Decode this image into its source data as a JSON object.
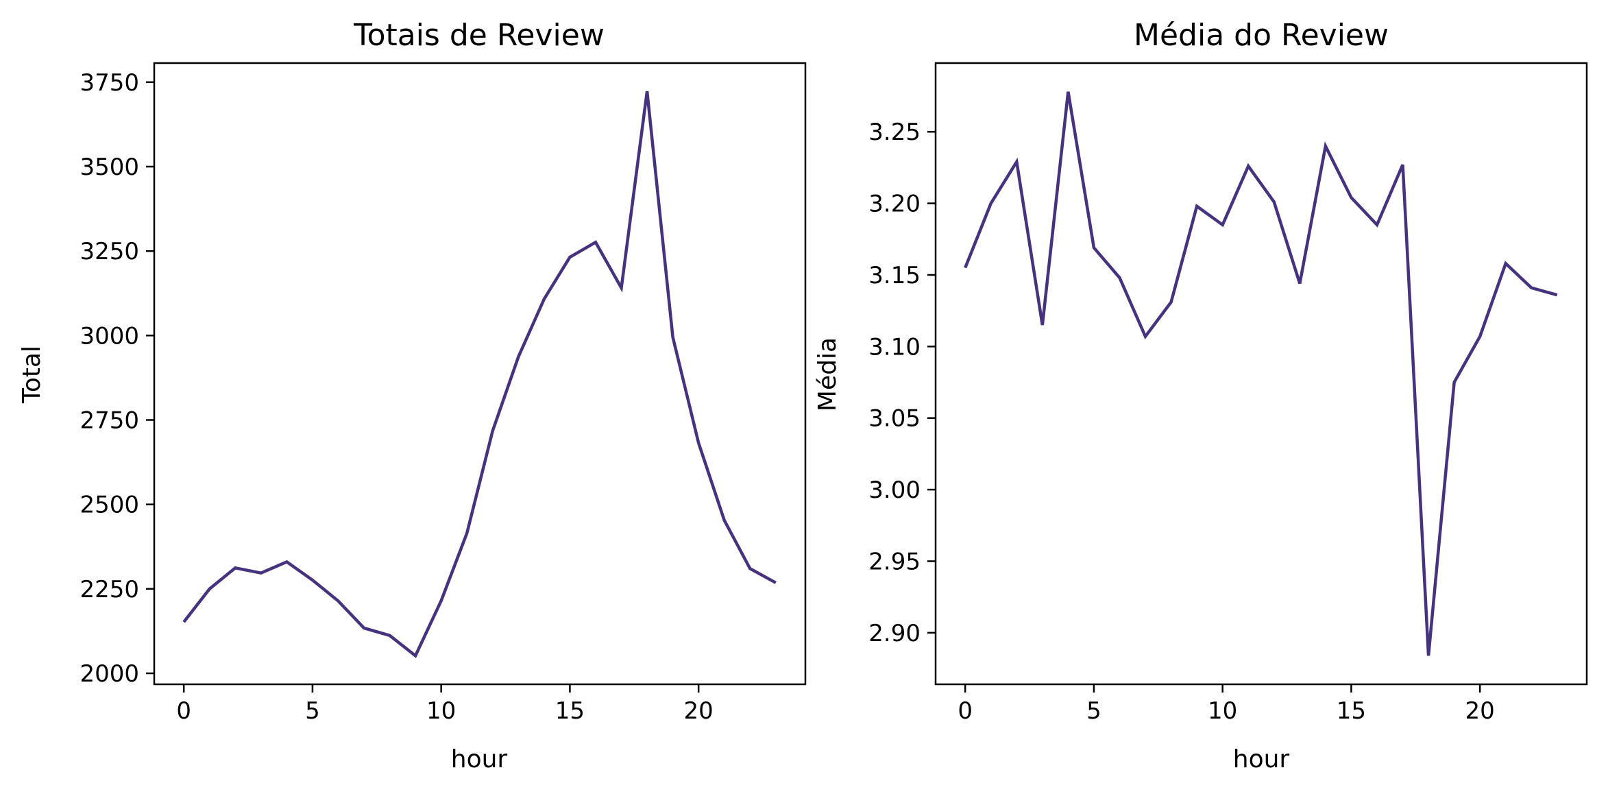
{
  "colors": {
    "line": "#46327e",
    "axes": "#000000",
    "background": "#ffffff"
  },
  "chart_data": [
    {
      "type": "line",
      "title": "Totais de Review",
      "xlabel": "hour",
      "ylabel": "Total",
      "x": [
        0,
        1,
        2,
        3,
        4,
        5,
        6,
        7,
        8,
        9,
        10,
        11,
        12,
        13,
        14,
        15,
        16,
        17,
        18,
        19,
        20,
        21,
        22,
        23
      ],
      "series": [
        {
          "values": [
            2152,
            2250,
            2312,
            2297,
            2330,
            2276,
            2214,
            2134,
            2112,
            2052,
            2215,
            2415,
            2718,
            2937,
            3108,
            3232,
            3276,
            3141,
            3723,
            2995,
            2682,
            2453,
            2310,
            2268
          ]
        }
      ],
      "xlim": [
        -1.15,
        24.15
      ],
      "ylim": [
        1967.5,
        3806.5
      ],
      "xticks": [
        0,
        5,
        10,
        15,
        20
      ],
      "xtick_labels": [
        "0",
        "5",
        "10",
        "15",
        "20"
      ],
      "yticks": [
        2000,
        2250,
        2500,
        2750,
        3000,
        3250,
        3500,
        3750
      ],
      "ytick_labels": [
        "2000",
        "2250",
        "2500",
        "2750",
        "3000",
        "3250",
        "3500",
        "3750"
      ],
      "grid": false,
      "legend": "none"
    },
    {
      "type": "line",
      "title": "Média do Review",
      "xlabel": "hour",
      "ylabel": "Média",
      "x": [
        0,
        1,
        2,
        3,
        4,
        5,
        6,
        7,
        8,
        9,
        10,
        11,
        12,
        13,
        14,
        15,
        16,
        17,
        18,
        19,
        20,
        21,
        22,
        23
      ],
      "series": [
        {
          "values": [
            3.155,
            3.2,
            3.229,
            3.115,
            3.278,
            3.169,
            3.148,
            3.107,
            3.131,
            3.198,
            3.185,
            3.226,
            3.201,
            3.144,
            3.24,
            3.204,
            3.185,
            3.227,
            2.884,
            3.075,
            3.107,
            3.158,
            3.141,
            3.136
          ]
        }
      ],
      "xlim": [
        -1.15,
        24.15
      ],
      "ylim": [
        2.864,
        3.298
      ],
      "xticks": [
        0,
        5,
        10,
        15,
        20
      ],
      "xtick_labels": [
        "0",
        "5",
        "10",
        "15",
        "20"
      ],
      "yticks": [
        2.9,
        2.95,
        3.0,
        3.05,
        3.1,
        3.15,
        3.2,
        3.25
      ],
      "ytick_labels": [
        "2.90",
        "2.95",
        "3.00",
        "3.05",
        "3.10",
        "3.15",
        "3.20",
        "3.25"
      ],
      "grid": false,
      "legend": "none"
    }
  ]
}
